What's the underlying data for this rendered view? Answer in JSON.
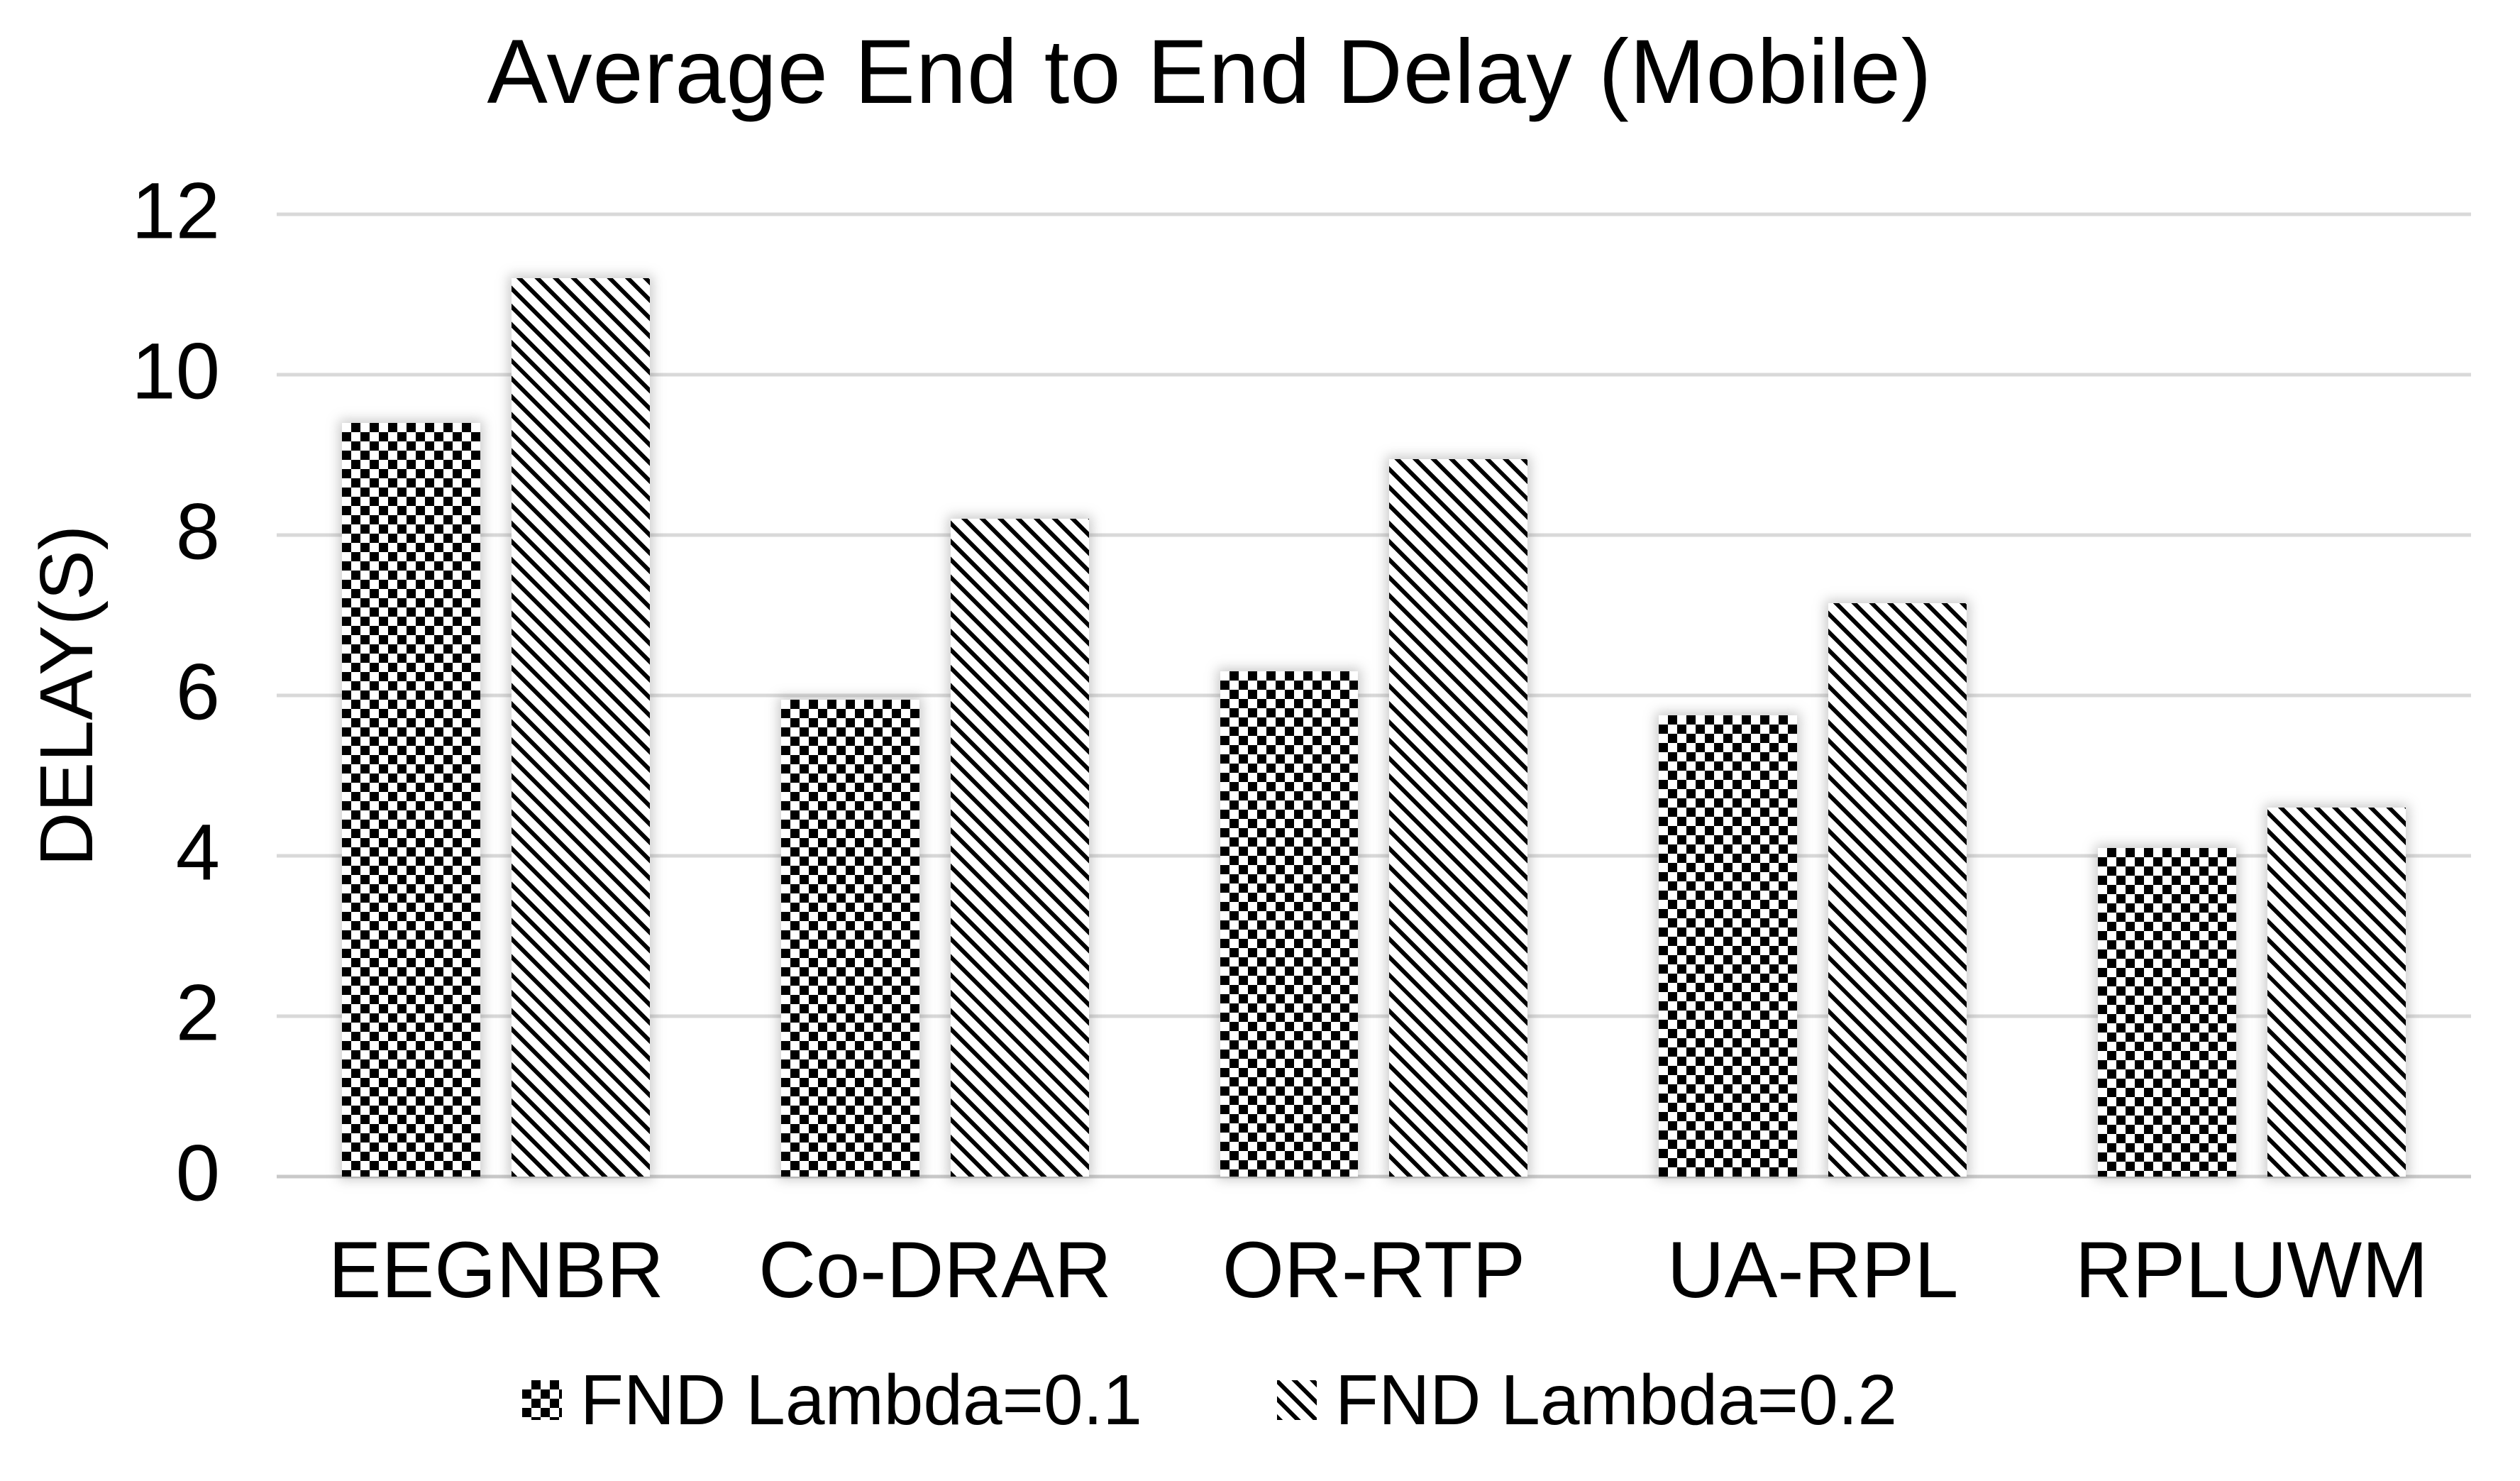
{
  "chart_data": {
    "type": "bar",
    "title": "Average End to End Delay (Mobile)",
    "xlabel": "",
    "ylabel": "DELAY(S)",
    "categories": [
      "EEGNBR",
      "Co-DRAR",
      "OR-RTP",
      "UA-RPL",
      "RPLUWM"
    ],
    "series": [
      {
        "name": "FND Lambda=0.1",
        "pattern": "checkered",
        "values": [
          9.4,
          5.95,
          6.3,
          5.75,
          4.1
        ]
      },
      {
        "name": "FND Lambda=0.2",
        "pattern": "diagonal-stripes",
        "values": [
          11.2,
          8.2,
          8.95,
          7.15,
          4.6
        ]
      }
    ],
    "ylim": [
      0,
      12
    ],
    "yticks": [
      0,
      2,
      4,
      6,
      8,
      10,
      12
    ],
    "grid": "horizontal",
    "legend_position": "bottom",
    "colors": {
      "background": "#ffffff",
      "bar_fill": "#ffffff",
      "pattern_ink": "#000000",
      "gridline": "#d9d9d9",
      "axis_line": "#c9c9c9",
      "text": "#000000"
    }
  }
}
